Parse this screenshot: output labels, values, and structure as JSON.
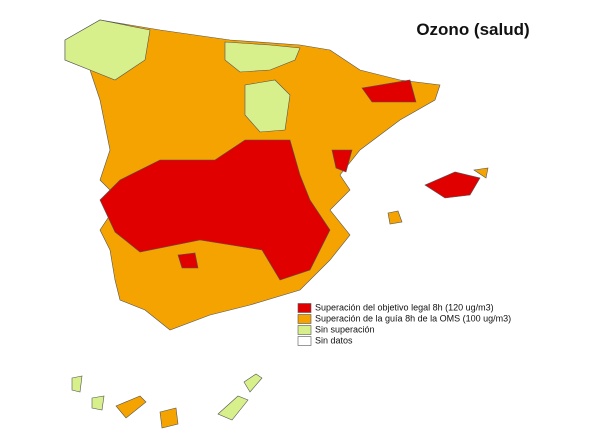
{
  "title": "Ozono (salud)",
  "legend": [
    {
      "label": "Superación del objetivo legal 8h (120 ug/m3)",
      "color": "#e00000"
    },
    {
      "label": "Superación de la guía 8h de la OMS (100 ug/m3)",
      "color": "#f5a300"
    },
    {
      "label": "Sin superación",
      "color": "#d8f08c"
    },
    {
      "label": "Sin datos",
      "color": "#ffffff"
    }
  ]
}
